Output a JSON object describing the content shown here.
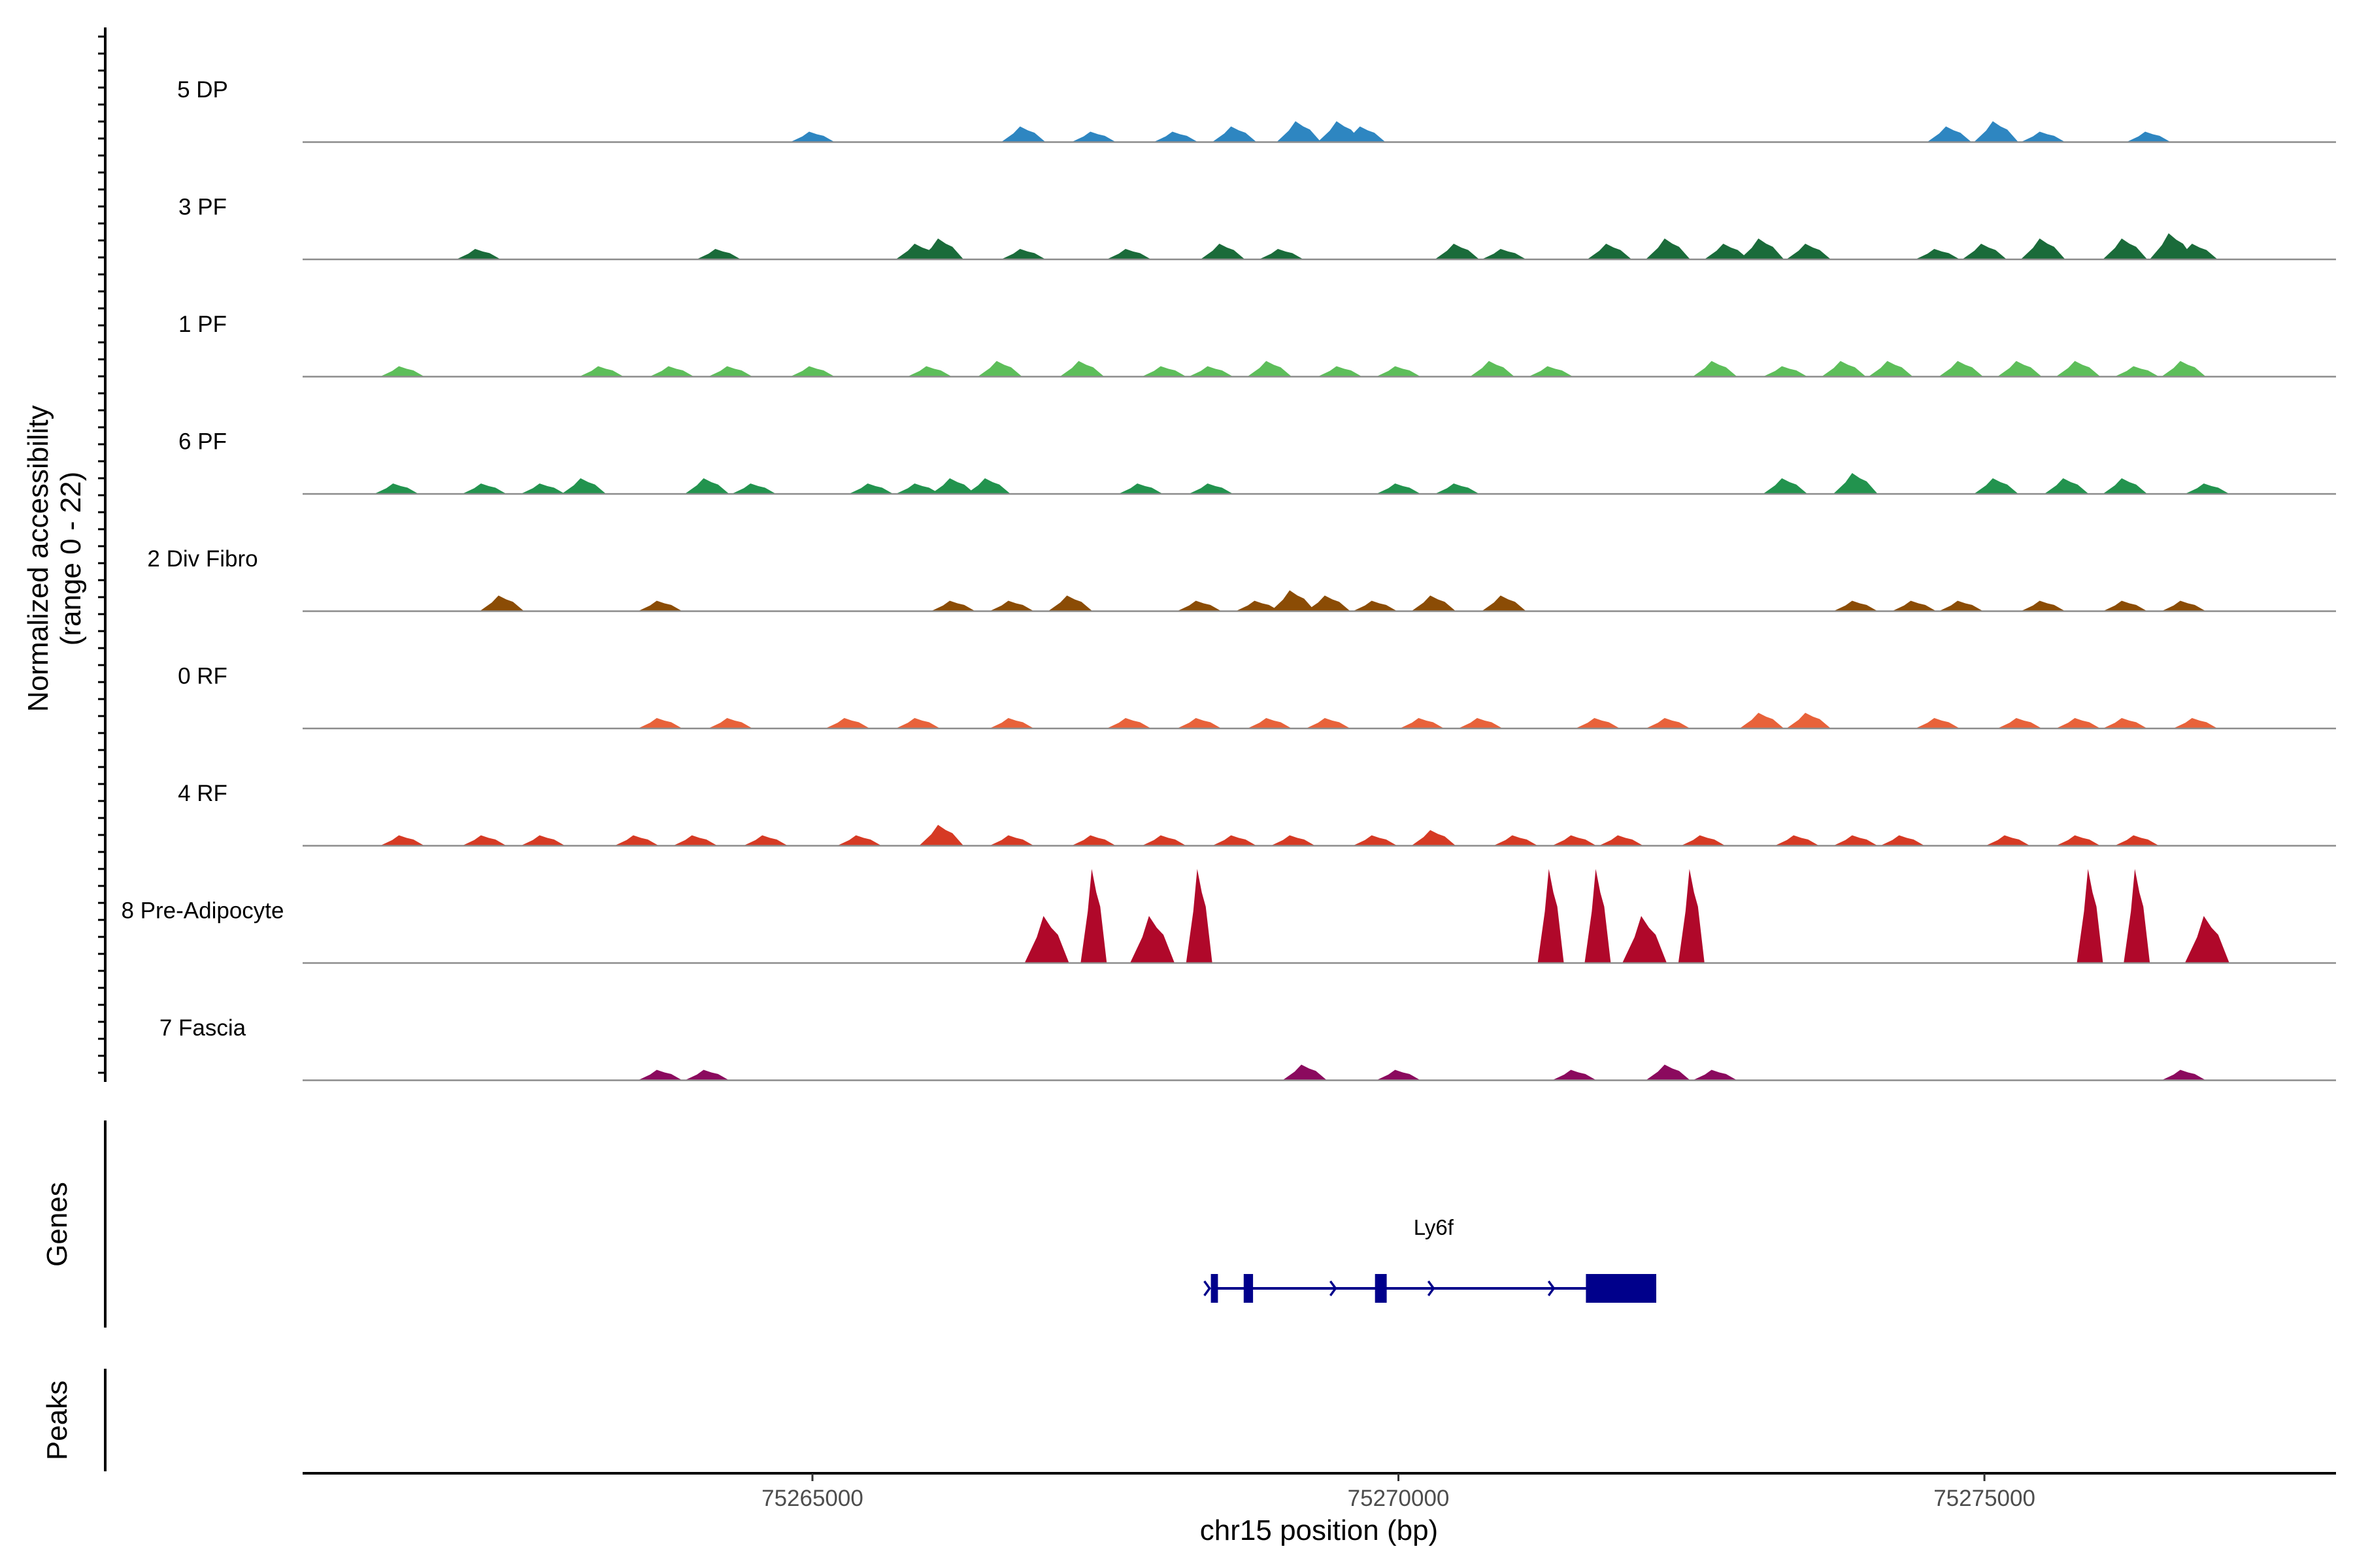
{
  "chart_data": {
    "type": "area",
    "subtype": "genome-coverage-track",
    "ylabel_line1": "Normalized accessibility",
    "ylabel_line2": "(range 0 - 22)",
    "ylim": [
      0,
      22
    ],
    "xlabel": "chr15 position (bp)",
    "xlim": [
      75260650,
      75278000
    ],
    "x_ticks": [
      75265000,
      75270000,
      75275000
    ],
    "x_tick_labels": [
      "75265000",
      "75270000",
      "75275000"
    ],
    "grid": false,
    "legend": "none",
    "tracks": [
      {
        "name": "5 DP",
        "color": "#2E86C1",
        "peaks": [
          [
            75265000,
            2
          ],
          [
            75266800,
            3
          ],
          [
            75267400,
            2
          ],
          [
            75268100,
            2
          ],
          [
            75268600,
            3
          ],
          [
            75269150,
            4
          ],
          [
            75269500,
            4
          ],
          [
            75269700,
            3
          ],
          [
            75274700,
            3
          ],
          [
            75275100,
            4
          ],
          [
            75275500,
            2
          ],
          [
            75276400,
            2
          ]
        ]
      },
      {
        "name": "3 PF",
        "color": "#1A6B3A",
        "peaks": [
          [
            75262150,
            2
          ],
          [
            75264200,
            2
          ],
          [
            75265900,
            3
          ],
          [
            75266100,
            4
          ],
          [
            75266800,
            2
          ],
          [
            75267700,
            2
          ],
          [
            75268500,
            3
          ],
          [
            75269000,
            2
          ],
          [
            75270500,
            3
          ],
          [
            75270900,
            2
          ],
          [
            75271800,
            3
          ],
          [
            75272300,
            4
          ],
          [
            75272800,
            3
          ],
          [
            75273100,
            4
          ],
          [
            75273500,
            3
          ],
          [
            75274600,
            2
          ],
          [
            75275000,
            3
          ],
          [
            75275500,
            4
          ],
          [
            75276200,
            4
          ],
          [
            75276600,
            5
          ],
          [
            75276800,
            3
          ]
        ]
      },
      {
        "name": "1 PF",
        "color": "#5DBE5A",
        "peaks": [
          [
            75261500,
            2
          ],
          [
            75263200,
            2
          ],
          [
            75263800,
            2
          ],
          [
            75264300,
            2
          ],
          [
            75265000,
            2
          ],
          [
            75266000,
            2
          ],
          [
            75266600,
            3
          ],
          [
            75267300,
            3
          ],
          [
            75268000,
            2
          ],
          [
            75268400,
            2
          ],
          [
            75268900,
            3
          ],
          [
            75269500,
            2
          ],
          [
            75270000,
            2
          ],
          [
            75270800,
            3
          ],
          [
            75271300,
            2
          ],
          [
            75272700,
            3
          ],
          [
            75273300,
            2
          ],
          [
            75273800,
            3
          ],
          [
            75274200,
            3
          ],
          [
            75274800,
            3
          ],
          [
            75275300,
            3
          ],
          [
            75275800,
            3
          ],
          [
            75276300,
            2
          ],
          [
            75276700,
            3
          ]
        ]
      },
      {
        "name": "6 PF",
        "color": "#22934E",
        "peaks": [
          [
            75261450,
            2
          ],
          [
            75262200,
            2
          ],
          [
            75262700,
            2
          ],
          [
            75263050,
            3
          ],
          [
            75264100,
            3
          ],
          [
            75264500,
            2
          ],
          [
            75265500,
            2
          ],
          [
            75265900,
            2
          ],
          [
            75266200,
            3
          ],
          [
            75266500,
            3
          ],
          [
            75267800,
            2
          ],
          [
            75268400,
            2
          ],
          [
            75270000,
            2
          ],
          [
            75270500,
            2
          ],
          [
            75273300,
            3
          ],
          [
            75273900,
            4
          ],
          [
            75275100,
            3
          ],
          [
            75275700,
            3
          ],
          [
            75276200,
            3
          ],
          [
            75276900,
            2
          ]
        ]
      },
      {
        "name": "2 Div Fibro",
        "color": "#8B4C05",
        "peaks": [
          [
            75262350,
            3
          ],
          [
            75263700,
            2
          ],
          [
            75266200,
            2
          ],
          [
            75266700,
            2
          ],
          [
            75267200,
            3
          ],
          [
            75268300,
            2
          ],
          [
            75268800,
            2
          ],
          [
            75269100,
            4
          ],
          [
            75269400,
            3
          ],
          [
            75269800,
            2
          ],
          [
            75270300,
            3
          ],
          [
            75270900,
            3
          ],
          [
            75273900,
            2
          ],
          [
            75274400,
            2
          ],
          [
            75274800,
            2
          ],
          [
            75275500,
            2
          ],
          [
            75276200,
            2
          ],
          [
            75276700,
            2
          ]
        ]
      },
      {
        "name": "0 RF",
        "color": "#E8623A",
        "peaks": [
          [
            75263700,
            2
          ],
          [
            75264300,
            2
          ],
          [
            75265300,
            2
          ],
          [
            75265900,
            2
          ],
          [
            75266700,
            2
          ],
          [
            75267700,
            2
          ],
          [
            75268300,
            2
          ],
          [
            75268900,
            2
          ],
          [
            75269400,
            2
          ],
          [
            75270200,
            2
          ],
          [
            75270700,
            2
          ],
          [
            75271700,
            2
          ],
          [
            75272300,
            2
          ],
          [
            75273100,
            3
          ],
          [
            75273500,
            3
          ],
          [
            75274600,
            2
          ],
          [
            75275300,
            2
          ],
          [
            75275800,
            2
          ],
          [
            75276200,
            2
          ],
          [
            75276800,
            2
          ]
        ]
      },
      {
        "name": "4 RF",
        "color": "#D63A24",
        "peaks": [
          [
            75261500,
            2
          ],
          [
            75262200,
            2
          ],
          [
            75262700,
            2
          ],
          [
            75263500,
            2
          ],
          [
            75264000,
            2
          ],
          [
            75264600,
            2
          ],
          [
            75265400,
            2
          ],
          [
            75266100,
            4
          ],
          [
            75266700,
            2
          ],
          [
            75267400,
            2
          ],
          [
            75268000,
            2
          ],
          [
            75268600,
            2
          ],
          [
            75269100,
            2
          ],
          [
            75269800,
            2
          ],
          [
            75270300,
            3
          ],
          [
            75271000,
            2
          ],
          [
            75271500,
            2
          ],
          [
            75271900,
            2
          ],
          [
            75272600,
            2
          ],
          [
            75273400,
            2
          ],
          [
            75273900,
            2
          ],
          [
            75274300,
            2
          ],
          [
            75275200,
            2
          ],
          [
            75275800,
            2
          ],
          [
            75276300,
            2
          ]
        ]
      },
      {
        "name": "8 Pre-Adipocyte",
        "color": "#B0082A",
        "peaks": [
          [
            75267000,
            9
          ],
          [
            75267400,
            18
          ],
          [
            75267900,
            9
          ],
          [
            75268300,
            18
          ],
          [
            75271300,
            18
          ],
          [
            75271700,
            18
          ],
          [
            75272100,
            9
          ],
          [
            75272500,
            18
          ],
          [
            75275900,
            18
          ],
          [
            75276300,
            18
          ],
          [
            75276900,
            9
          ]
        ]
      },
      {
        "name": "7 Fascia",
        "color": "#8B0A5E",
        "peaks": [
          [
            75263700,
            2
          ],
          [
            75264100,
            2
          ],
          [
            75269200,
            3
          ],
          [
            75270000,
            2
          ],
          [
            75271500,
            2
          ],
          [
            75272300,
            3
          ],
          [
            75272700,
            2
          ],
          [
            75276700,
            2
          ]
        ]
      }
    ],
    "genes": [
      {
        "name": "Ly6f",
        "strand": "+",
        "start": 75268400,
        "end": 75272200,
        "exons": [
          [
            75268400,
            75268460
          ],
          [
            75268680,
            75268760
          ],
          [
            75269800,
            75269900
          ],
          [
            75271600,
            75272200
          ]
        ]
      }
    ],
    "gene_panel_title": "Genes",
    "peak_panel_title": "Peaks",
    "peaks_panel": []
  }
}
